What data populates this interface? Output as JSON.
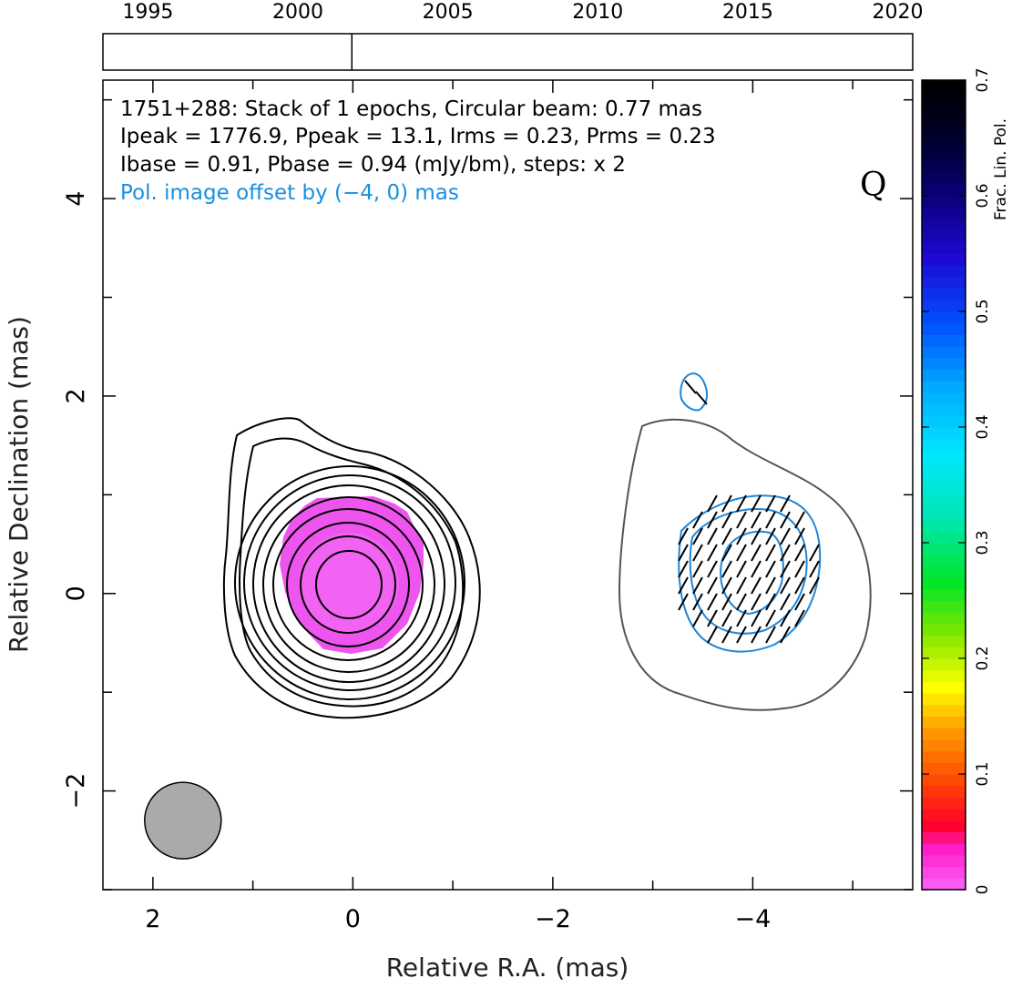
{
  "chart_data": {
    "type": "contour",
    "source": "1751+288",
    "stokes_label": "Q",
    "annotation_lines": [
      "1751+288: Stack of 1 epochs, Circular beam: 0.77 mas",
      "Ipeak = 1776.9, Ppeak = 13.1, Irms = 0.23, Prms = 0.23",
      "Ibase = 0.91, Pbase = 0.94 (mJy/bm), steps: x 2"
    ],
    "offset_note": "Pol. image offset by (−4, 0) mas",
    "xlabel": "Relative R.A. (mas)",
    "ylabel": "Relative Declination (mas)",
    "xlim": [
      2.5,
      -5.6
    ],
    "ylim": [
      -3.0,
      5.2
    ],
    "x_ticks": [
      {
        "value": 2,
        "label": "2"
      },
      {
        "value": 0,
        "label": "0"
      },
      {
        "value": -2,
        "label": "−2"
      },
      {
        "value": -4,
        "label": "−4"
      }
    ],
    "y_ticks": [
      {
        "value": -2,
        "label": "−2"
      },
      {
        "value": 0,
        "label": "0"
      },
      {
        "value": 2,
        "label": "2"
      },
      {
        "value": 4,
        "label": "4"
      }
    ],
    "beam": {
      "x": 1.7,
      "y": -2.3,
      "diameter_mas": 0.77
    },
    "timeline": {
      "range": [
        1993.5,
        2020.5
      ],
      "ticks": [
        {
          "value": 1995,
          "label": "1995"
        },
        {
          "value": 2000,
          "label": "2000"
        },
        {
          "value": 2005,
          "label": "2005"
        },
        {
          "value": 2010,
          "label": "2010"
        },
        {
          "value": 2015,
          "label": "2015"
        },
        {
          "value": 2020,
          "label": "2020"
        }
      ],
      "epochs": [
        2001.8
      ]
    },
    "colorbar": {
      "label": "Frac. Lin. Pol.",
      "range": [
        0,
        0.7
      ],
      "ticks": [
        {
          "value": 0,
          "label": "0"
        },
        {
          "value": 0.1,
          "label": "0.1"
        },
        {
          "value": 0.2,
          "label": "0.2"
        },
        {
          "value": 0.3,
          "label": "0.3"
        },
        {
          "value": 0.4,
          "label": "0.4"
        },
        {
          "value": 0.5,
          "label": "0.5"
        },
        {
          "value": 0.6,
          "label": "0.6"
        },
        {
          "value": 0.7,
          "label": "0.7"
        }
      ]
    },
    "colors": {
      "offset_note": "#1a8fe0",
      "pol_contour": "#1f86d8",
      "base_contour": "#555555",
      "fill": "#ee44ee",
      "beam_fill": "#aaaaaa"
    }
  }
}
